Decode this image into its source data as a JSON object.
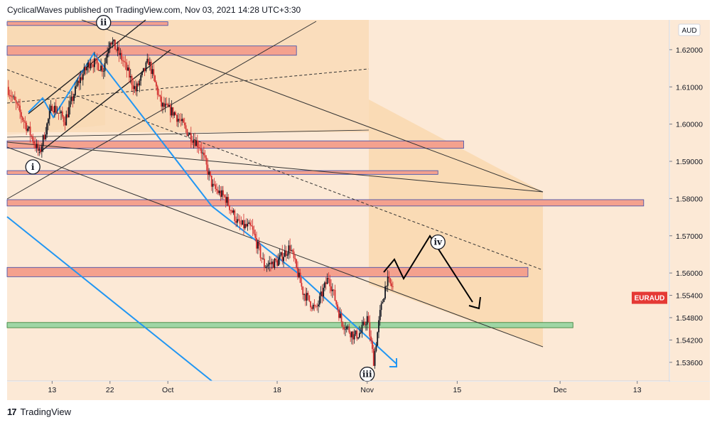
{
  "header": {
    "publisher_line": "CyclicalWaves published on TradingView.com, Nov 03, 2021 14:28 UTC+3:30"
  },
  "footer": {
    "brand": "TradingView",
    "logo": "tradingview-logo"
  },
  "colors": {
    "background_zone": "#f6ddc0",
    "resistance_zone": "#f4a18e",
    "support_zone": "#9fd6a5",
    "up_candle": "#131722",
    "down_candle": "#d32f2f",
    "price_label_bg": "#e53935",
    "wave_arrow": "#2196f3"
  },
  "chart_data": {
    "type": "candlestick",
    "symbol": "EURAUD",
    "currency": "AUD",
    "current_price": 1.5561,
    "x_range": [
      "2021-09-06",
      "2021-12-18"
    ],
    "ylim": [
      1.531,
      1.628
    ],
    "x_ticks": [
      {
        "date": "2021-09-13",
        "label": "13"
      },
      {
        "date": "2021-09-22",
        "label": "22"
      },
      {
        "date": "2021-10-01",
        "label": "Oct"
      },
      {
        "date": "2021-10-18",
        "label": "18"
      },
      {
        "date": "2021-11-01",
        "label": "Nov"
      },
      {
        "date": "2021-11-15",
        "label": "15"
      },
      {
        "date": "2021-12-01",
        "label": "Dec"
      },
      {
        "date": "2021-12-13",
        "label": "13"
      }
    ],
    "y_ticks": [
      {
        "value": 1.62,
        "label": "1.62000"
      },
      {
        "value": 1.61,
        "label": "1.61000"
      },
      {
        "value": 1.6,
        "label": "1.60000"
      },
      {
        "value": 1.59,
        "label": "1.59000"
      },
      {
        "value": 1.58,
        "label": "1.58000"
      },
      {
        "value": 1.57,
        "label": "1.57000"
      },
      {
        "value": 1.56,
        "label": "1.56000"
      },
      {
        "value": 1.554,
        "label": "1.55400"
      },
      {
        "value": 1.548,
        "label": "1.54800"
      },
      {
        "value": 1.542,
        "label": "1.54200"
      },
      {
        "value": 1.536,
        "label": "1.53600"
      }
    ],
    "price_path": [
      [
        "2021-09-06",
        1.61
      ],
      [
        "2021-09-08",
        1.603
      ],
      [
        "2021-09-10",
        1.596
      ],
      [
        "2021-09-11",
        1.592
      ],
      [
        "2021-09-13",
        1.605
      ],
      [
        "2021-09-15",
        1.601
      ],
      [
        "2021-09-17",
        1.611
      ],
      [
        "2021-09-19",
        1.617
      ],
      [
        "2021-09-21",
        1.615
      ],
      [
        "2021-09-22",
        1.623
      ],
      [
        "2021-09-24",
        1.617
      ],
      [
        "2021-09-26",
        1.609
      ],
      [
        "2021-09-28",
        1.617
      ],
      [
        "2021-09-30",
        1.605
      ],
      [
        "2021-10-02",
        1.603
      ],
      [
        "2021-10-04",
        1.598
      ],
      [
        "2021-10-06",
        1.594
      ],
      [
        "2021-10-08",
        1.583
      ],
      [
        "2021-10-10",
        1.58
      ],
      [
        "2021-10-12",
        1.573
      ],
      [
        "2021-10-14",
        1.572
      ],
      [
        "2021-10-16",
        1.562
      ],
      [
        "2021-10-18",
        1.563
      ],
      [
        "2021-10-20",
        1.567
      ],
      [
        "2021-10-22",
        1.555
      ],
      [
        "2021-10-24",
        1.55
      ],
      [
        "2021-10-26",
        1.559
      ],
      [
        "2021-10-28",
        1.547
      ],
      [
        "2021-10-30",
        1.543
      ],
      [
        "2021-10-31",
        1.544
      ],
      [
        "2021-11-01",
        1.548
      ],
      [
        "2021-11-02",
        1.5365
      ],
      [
        "2021-11-03",
        1.549
      ],
      [
        "2021-11-04",
        1.558
      ],
      [
        "2021-11-05",
        1.5561
      ]
    ],
    "zones": [
      {
        "kind": "resistance",
        "low": 1.6265,
        "high": 1.6275,
        "from": "2021-09-06",
        "to": "2021-10-01"
      },
      {
        "kind": "resistance",
        "low": 1.6185,
        "high": 1.621,
        "from": "2021-09-06",
        "to": "2021-10-21"
      },
      {
        "kind": "resistance",
        "low": 1.5935,
        "high": 1.5955,
        "from": "2021-09-06",
        "to": "2021-11-16"
      },
      {
        "kind": "resistance",
        "low": 1.5865,
        "high": 1.5875,
        "from": "2021-09-06",
        "to": "2021-11-12"
      },
      {
        "kind": "resistance",
        "low": 1.578,
        "high": 1.5797,
        "from": "2021-09-06",
        "to": "2021-12-14"
      },
      {
        "kind": "resistance",
        "low": 1.559,
        "high": 1.5615,
        "from": "2021-09-06",
        "to": "2021-11-26"
      },
      {
        "kind": "support",
        "low": 1.5453,
        "high": 1.5467,
        "from": "2021-09-06",
        "to": "2021-12-03"
      }
    ],
    "wave_labels": [
      {
        "label": "i",
        "date": "2021-09-10",
        "price": 1.5885
      },
      {
        "label": "ii",
        "date": "2021-09-21",
        "price": 1.6273
      },
      {
        "label": "iii",
        "date": "2021-11-01",
        "price": 1.5328
      },
      {
        "label": "iv",
        "date": "2021-11-12",
        "price": 1.5683
      }
    ]
  }
}
